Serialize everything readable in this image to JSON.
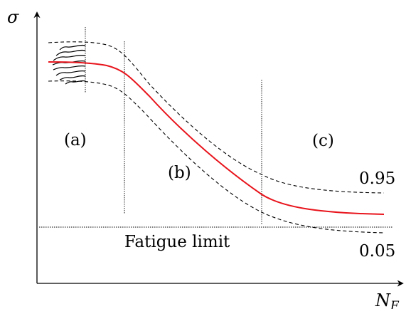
{
  "axes": {
    "y_label": "σ",
    "x_label": "N_F"
  },
  "regions": {
    "a": "(a)",
    "b": "(b)",
    "c": "(c)"
  },
  "fatigue_limit_label": "Fatigue limit",
  "bands": {
    "upper": "0.95",
    "lower": "0.05"
  },
  "colors": {
    "median_curve": "#e8141c",
    "band_lines": "#000000"
  }
}
